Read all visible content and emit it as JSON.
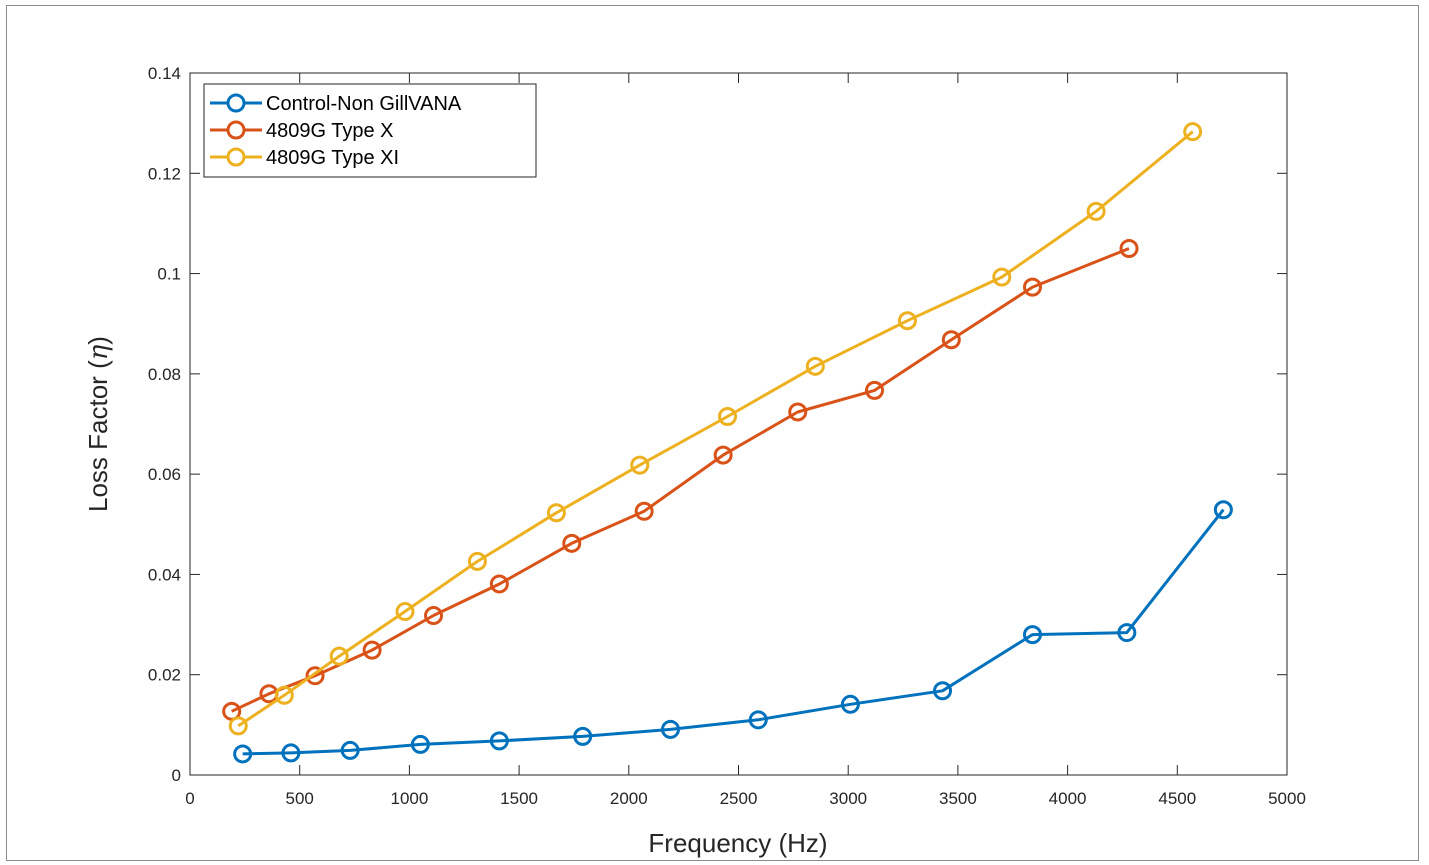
{
  "chart_data": {
    "type": "line",
    "xlabel": "Frequency (Hz)",
    "ylabel_main": "Loss Factor (",
    "ylabel_symbol": "η",
    "ylabel_close": ")",
    "xlim": [
      0,
      5000
    ],
    "ylim": [
      0,
      0.14
    ],
    "xticks": [
      "0",
      "500",
      "1000",
      "1500",
      "2000",
      "2500",
      "3000",
      "3500",
      "4000",
      "4500",
      "5000"
    ],
    "xtick_values": [
      0,
      500,
      1000,
      1500,
      2000,
      2500,
      3000,
      3500,
      4000,
      4500,
      5000
    ],
    "yticks": [
      "0",
      "0.02",
      "0.04",
      "0.06",
      "0.08",
      "0.1",
      "0.12",
      "0.14"
    ],
    "ytick_values": [
      0,
      0.02,
      0.04,
      0.06,
      0.08,
      0.1,
      0.12,
      0.14
    ],
    "grid": false,
    "legend_position": "top-left",
    "series": [
      {
        "name": "Control-Non GillVANA",
        "color": "#0072BD",
        "x": [
          240,
          460,
          730,
          1050,
          1410,
          1790,
          2190,
          2590,
          3010,
          3430,
          3840,
          4270,
          4710
        ],
        "y": [
          0.0042,
          0.0044,
          0.0049,
          0.0061,
          0.0068,
          0.0077,
          0.0091,
          0.011,
          0.0141,
          0.0168,
          0.028,
          0.0284,
          0.0529
        ]
      },
      {
        "name": "4809G Type X",
        "color": "#D95319",
        "x": [
          190,
          360,
          570,
          830,
          1110,
          1410,
          1740,
          2070,
          2430,
          2770,
          3120,
          3470,
          3840,
          4280
        ],
        "y": [
          0.0127,
          0.0162,
          0.0198,
          0.0249,
          0.0318,
          0.0381,
          0.0462,
          0.0526,
          0.0638,
          0.0724,
          0.0767,
          0.0868,
          0.0973,
          0.105
        ]
      },
      {
        "name": "4809G Type XI",
        "color": "#EDB120",
        "x": [
          220,
          430,
          680,
          980,
          1310,
          1670,
          2050,
          2450,
          2850,
          3270,
          3700,
          4130,
          4570
        ],
        "y": [
          0.0098,
          0.0159,
          0.0237,
          0.0326,
          0.0426,
          0.0523,
          0.0618,
          0.0715,
          0.0815,
          0.0906,
          0.0993,
          0.1124,
          0.1283
        ]
      }
    ]
  }
}
